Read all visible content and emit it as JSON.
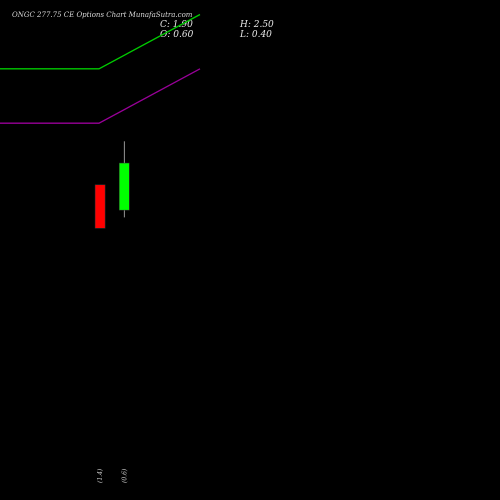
{
  "header": {
    "title": "ONGC 277.75 CE Options  Chart MunafaSutra.com",
    "close": "C: 1.90",
    "open": "O: 0.60",
    "high": "H: 2.50",
    "low": "L: 0.40"
  },
  "colors": {
    "background": "#000000",
    "up": "#00ff00",
    "down": "#ff0000",
    "wick": "#bbbbbb",
    "line_green": "#00cc00",
    "line_purple": "#990099"
  },
  "chart_data": {
    "type": "candlestick",
    "title": "ONGC 277.75 CE Options  Chart MunafaSutra.com",
    "xlabel": "",
    "ylabel": "",
    "ylim": [
      -7.4,
      6.4
    ],
    "categories": [
      "",
      "",
      "",
      "",
      ""
    ],
    "candles": [
      {
        "index": 3,
        "label": "(1.4)",
        "open": 1.3,
        "high": 1.3,
        "low": 0.1,
        "close": 0.1,
        "direction": "down"
      },
      {
        "index": 4,
        "label": "(0.6)",
        "open": 0.6,
        "high": 2.5,
        "low": 0.4,
        "close": 1.9,
        "direction": "up"
      }
    ],
    "series": [
      {
        "color": "#00cc00",
        "values": [
          4.5,
          4.5,
          4.5,
          4.5,
          6.0
        ]
      },
      {
        "color": "#990099",
        "values": [
          3.0,
          3.0,
          3.0,
          3.0,
          4.5
        ]
      }
    ]
  }
}
